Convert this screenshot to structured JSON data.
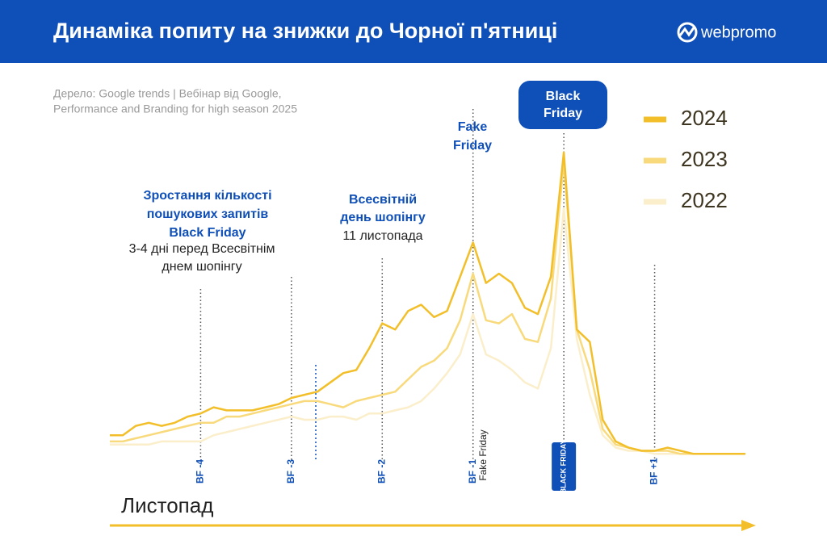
{
  "header": {
    "title": "Динаміка попиту на знижки до Чорної п'ятниці",
    "logo": "webpromo"
  },
  "chart_data": {
    "type": "line",
    "source": [
      "Дерело: Google trends | Вебінар від Google,",
      "Performance and Branding for high season 2025"
    ],
    "x_label": "Листопад",
    "x": [
      -35,
      -34,
      -33,
      -32,
      -31,
      -30,
      -29,
      -28,
      -27,
      -26,
      -25,
      -24,
      -23,
      -22,
      -21,
      -20,
      -19,
      -18,
      -17,
      -16,
      -15,
      -14,
      -13,
      -12,
      -11,
      -10,
      -9,
      -8,
      -7,
      -6,
      -5,
      -4,
      -3,
      -2,
      -1,
      0,
      1,
      2,
      3,
      4,
      5,
      6,
      7,
      8,
      9,
      10,
      11,
      12,
      13,
      14
    ],
    "xlim": [
      -35,
      14
    ],
    "xticks": [
      {
        "value": -28,
        "label": "BF -4"
      },
      {
        "value": -21,
        "label": "BF -3"
      },
      {
        "value": -14,
        "label": "BF -2"
      },
      {
        "value": -7,
        "label": "BF -1"
      },
      {
        "value": 0,
        "label": "BLACK FRIDAY"
      },
      {
        "value": 7,
        "label": "BF +1"
      }
    ],
    "ylim": [
      0,
      100
    ],
    "series": [
      {
        "name": "2022",
        "color": "#fbeecb",
        "values": [
          5,
          5,
          5,
          5,
          6,
          6,
          6,
          6,
          8,
          9,
          10,
          11,
          12,
          13,
          14,
          13,
          13,
          14,
          14,
          13,
          15,
          15,
          16,
          17,
          19,
          23,
          28,
          34,
          47,
          34,
          32,
          29,
          25,
          23,
          36,
          81,
          39,
          21,
          8,
          4,
          3,
          3,
          2,
          2,
          2,
          2,
          2,
          2,
          2,
          2
        ]
      },
      {
        "name": "2023",
        "color": "#f8da7c",
        "values": [
          6,
          6,
          7,
          8,
          9,
          10,
          11,
          12,
          12,
          14,
          14,
          15,
          16,
          17,
          18,
          19,
          19,
          18,
          17,
          19,
          20,
          21,
          22,
          26,
          30,
          32,
          36,
          45,
          60,
          45,
          44,
          47,
          39,
          38,
          52,
          96,
          42,
          29,
          10,
          5,
          4,
          3,
          3,
          3,
          2,
          2,
          2,
          2,
          2,
          2
        ]
      },
      {
        "name": "2024",
        "color": "#f2bf2a",
        "values": [
          8,
          8,
          11,
          12,
          11,
          12,
          14,
          15,
          17,
          16,
          16,
          16,
          17,
          18,
          20,
          21,
          22,
          25,
          28,
          29,
          36,
          44,
          42,
          48,
          50,
          46,
          48,
          59,
          70,
          57,
          60,
          57,
          49,
          47,
          59,
          99,
          42,
          38,
          13,
          6,
          4,
          3,
          3,
          4,
          3,
          2,
          2,
          2,
          2,
          2
        ]
      }
    ],
    "annotations": {
      "growth_title": [
        "Зростання кількості",
        "пошукових запитів",
        "Black Friday"
      ],
      "growth_note": [
        "3-4 дні перед Всесвітнім",
        "днем шопінгу"
      ],
      "shopping_title": [
        "Всесвітній",
        "день шопінгу"
      ],
      "shopping_note": "11 листопада",
      "fake_title": [
        "Fake",
        "Friday"
      ],
      "fake_vertical": "Fake Friday",
      "bf_title": [
        "Black",
        "Friday"
      ]
    }
  }
}
